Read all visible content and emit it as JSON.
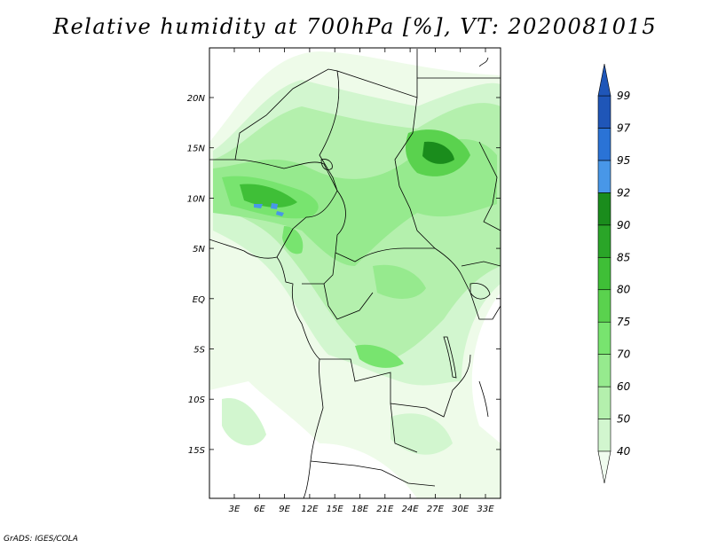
{
  "title": "Relative humidity at 700hPa [%], VT: 2020081015",
  "credit": "GrADS: IGES/COLA",
  "map": {
    "lat_labels": [
      "20N",
      "15N",
      "10N",
      "5N",
      "EQ",
      "5S",
      "10S",
      "15S"
    ],
    "lon_labels": [
      "3E",
      "6E",
      "9E",
      "12E",
      "15E",
      "18E",
      "21E",
      "24E",
      "27E",
      "30E",
      "33E"
    ]
  },
  "colorbar": {
    "levels": [
      "40",
      "50",
      "60",
      "70",
      "75",
      "80",
      "85",
      "90",
      "92",
      "95",
      "97",
      "99"
    ],
    "colors": [
      "#f0fcef",
      "#d2f6cf",
      "#b4f0ad",
      "#96ea8e",
      "#78e46f",
      "#5ad24e",
      "#3fbf37",
      "#2aa528",
      "#1a8c1c",
      "#4897e8",
      "#2a73d6",
      "#1f56b8"
    ],
    "open_ends": true
  }
}
